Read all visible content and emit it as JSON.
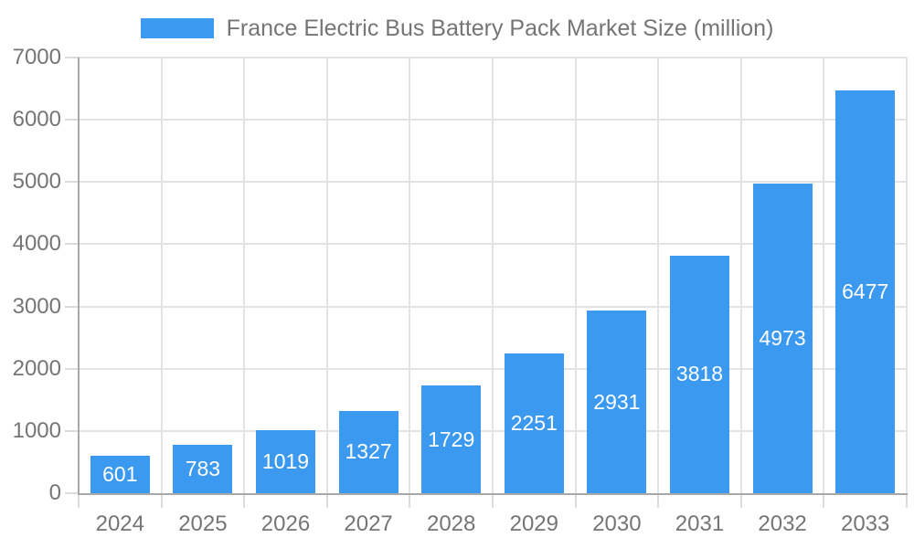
{
  "chart_data": {
    "type": "bar",
    "title": "France Electric Bus Battery Pack Market Size (million)",
    "legend_entries": [
      "France Electric Bus Battery Pack Market Size (million)"
    ],
    "legend_position": "top-center",
    "categories": [
      "2024",
      "2025",
      "2026",
      "2027",
      "2028",
      "2029",
      "2030",
      "2031",
      "2032",
      "2033"
    ],
    "series": [
      {
        "name": "France Electric Bus Battery Pack Market Size (million)",
        "values": [
          601,
          783,
          1019,
          1327,
          1729,
          2251,
          2931,
          3818,
          4973,
          6477
        ]
      }
    ],
    "bar_value_labels": [
      "601",
      "783",
      "1019",
      "1327",
      "1729",
      "2251",
      "2931",
      "3818",
      "4973",
      "6477"
    ],
    "xlabel": "",
    "ylabel": "",
    "ylim": [
      0,
      7000
    ],
    "yticks": [
      0,
      1000,
      2000,
      3000,
      4000,
      5000,
      6000,
      7000
    ],
    "ytick_labels": [
      "0",
      "1000",
      "2000",
      "3000",
      "4000",
      "5000",
      "6000",
      "7000"
    ],
    "grid": true
  },
  "colors": {
    "bar": "#3B99F0",
    "bar_value_text": "#FFFFFF",
    "gridline": "#E3E3E3",
    "tick": "#DCDCDC",
    "axis_line": "#A8A8A8",
    "tick_label_text": "#757575",
    "title_text": "#757575",
    "background": "#FFFFFF"
  }
}
